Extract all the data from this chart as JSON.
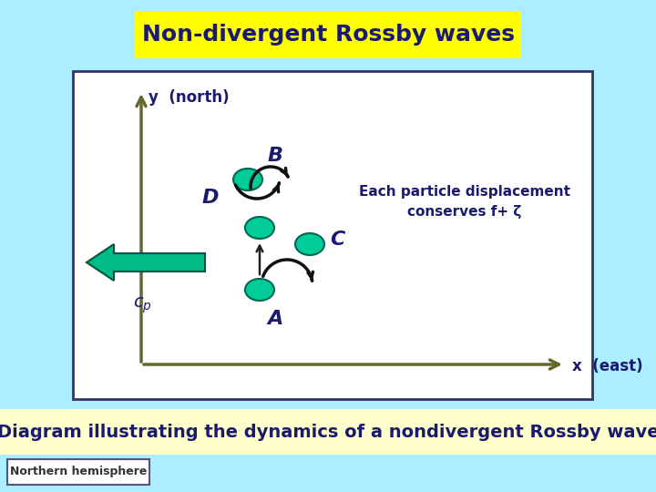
{
  "bg_color": "#aaeeff",
  "title": "Non-divergent Rossby waves",
  "title_bg": "#ffff00",
  "title_color": "#1a1a6e",
  "diagram_bg": "#ffffff",
  "diagram_border": "#333366",
  "axis_color": "#666633",
  "label_color": "#1a1a6e",
  "particle_color": "#00cc99",
  "cp_arrow_color": "#00bb88",
  "text_line1": "Each particle displacement",
  "text_line2": "conserves f+ ζ",
  "bottom_text": "Diagram illustrating the dynamics of a nondivergent Rossby wave",
  "bottom_bg": "#ffffcc",
  "tag_text": "Northern hemisphere",
  "tag_bg": "#ffffff",
  "tag_border": "#555577"
}
